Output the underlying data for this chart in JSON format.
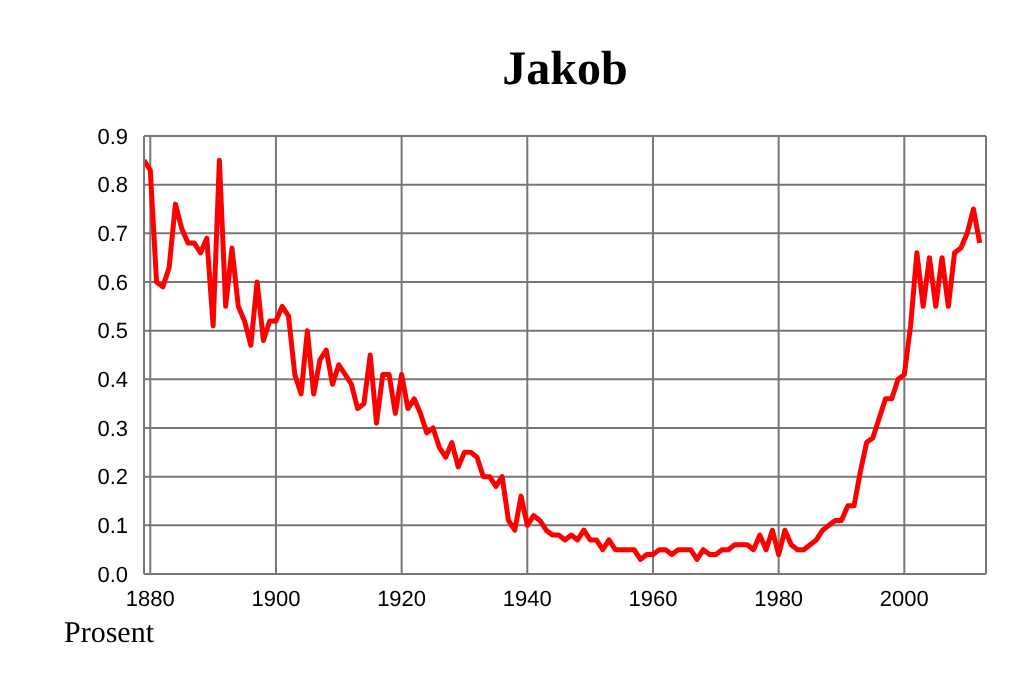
{
  "chart_data": {
    "type": "line",
    "title": "Jakob",
    "ylabel": "Prosent",
    "x": [
      1879,
      1880,
      1881,
      1882,
      1883,
      1884,
      1885,
      1886,
      1887,
      1888,
      1889,
      1890,
      1891,
      1892,
      1893,
      1894,
      1895,
      1896,
      1897,
      1898,
      1899,
      1900,
      1901,
      1902,
      1903,
      1904,
      1905,
      1906,
      1907,
      1908,
      1909,
      1910,
      1911,
      1912,
      1913,
      1914,
      1915,
      1916,
      1917,
      1918,
      1919,
      1920,
      1921,
      1922,
      1923,
      1924,
      1925,
      1926,
      1927,
      1928,
      1929,
      1930,
      1931,
      1932,
      1933,
      1934,
      1935,
      1936,
      1937,
      1938,
      1939,
      1940,
      1941,
      1942,
      1943,
      1944,
      1945,
      1946,
      1947,
      1948,
      1949,
      1950,
      1951,
      1952,
      1953,
      1954,
      1955,
      1956,
      1957,
      1958,
      1959,
      1960,
      1961,
      1962,
      1963,
      1964,
      1965,
      1966,
      1967,
      1968,
      1969,
      1970,
      1971,
      1972,
      1973,
      1974,
      1975,
      1976,
      1977,
      1978,
      1979,
      1980,
      1981,
      1982,
      1983,
      1984,
      1985,
      1986,
      1987,
      1988,
      1989,
      1990,
      1991,
      1992,
      1993,
      1994,
      1995,
      1996,
      1997,
      1998,
      1999,
      2000,
      2001,
      2002,
      2003,
      2004,
      2005,
      2006,
      2007,
      2008,
      2009,
      2010,
      2011,
      2012
    ],
    "series": [
      {
        "color": "#ff0000",
        "values": [
          0.85,
          0.83,
          0.6,
          0.59,
          0.63,
          0.76,
          0.71,
          0.68,
          0.68,
          0.66,
          0.69,
          0.51,
          0.85,
          0.55,
          0.67,
          0.55,
          0.52,
          0.47,
          0.6,
          0.48,
          0.52,
          0.52,
          0.55,
          0.53,
          0.41,
          0.37,
          0.5,
          0.37,
          0.44,
          0.46,
          0.39,
          0.43,
          0.41,
          0.39,
          0.34,
          0.35,
          0.45,
          0.31,
          0.41,
          0.41,
          0.33,
          0.41,
          0.34,
          0.36,
          0.33,
          0.29,
          0.3,
          0.26,
          0.24,
          0.27,
          0.22,
          0.25,
          0.25,
          0.24,
          0.2,
          0.2,
          0.18,
          0.2,
          0.11,
          0.09,
          0.16,
          0.1,
          0.12,
          0.11,
          0.09,
          0.08,
          0.08,
          0.07,
          0.08,
          0.07,
          0.09,
          0.07,
          0.07,
          0.05,
          0.07,
          0.05,
          0.05,
          0.05,
          0.05,
          0.03,
          0.04,
          0.04,
          0.05,
          0.05,
          0.04,
          0.05,
          0.05,
          0.05,
          0.03,
          0.05,
          0.04,
          0.04,
          0.05,
          0.05,
          0.06,
          0.06,
          0.06,
          0.05,
          0.08,
          0.05,
          0.09,
          0.04,
          0.09,
          0.06,
          0.05,
          0.05,
          0.06,
          0.07,
          0.09,
          0.1,
          0.11,
          0.11,
          0.14,
          0.14,
          0.21,
          0.27,
          0.28,
          0.32,
          0.36,
          0.36,
          0.4,
          0.41,
          0.51,
          0.66,
          0.55,
          0.65,
          0.55,
          0.65,
          0.55,
          0.66,
          0.67,
          0.7,
          0.75,
          0.68
        ]
      }
    ],
    "xlim": [
      1879,
      2013
    ],
    "xticks": [
      1880,
      1900,
      1920,
      1940,
      1960,
      1980,
      2000
    ],
    "ylim": [
      0,
      0.9
    ],
    "yticks": [
      {
        "value": 0,
        "label": "0.0"
      },
      0.1,
      0.2,
      0.3,
      0.4,
      0.5,
      0.6,
      0.7,
      0.8,
      0.9
    ],
    "grid": true,
    "legend": false,
    "marker": "none",
    "line_style": "solid"
  }
}
